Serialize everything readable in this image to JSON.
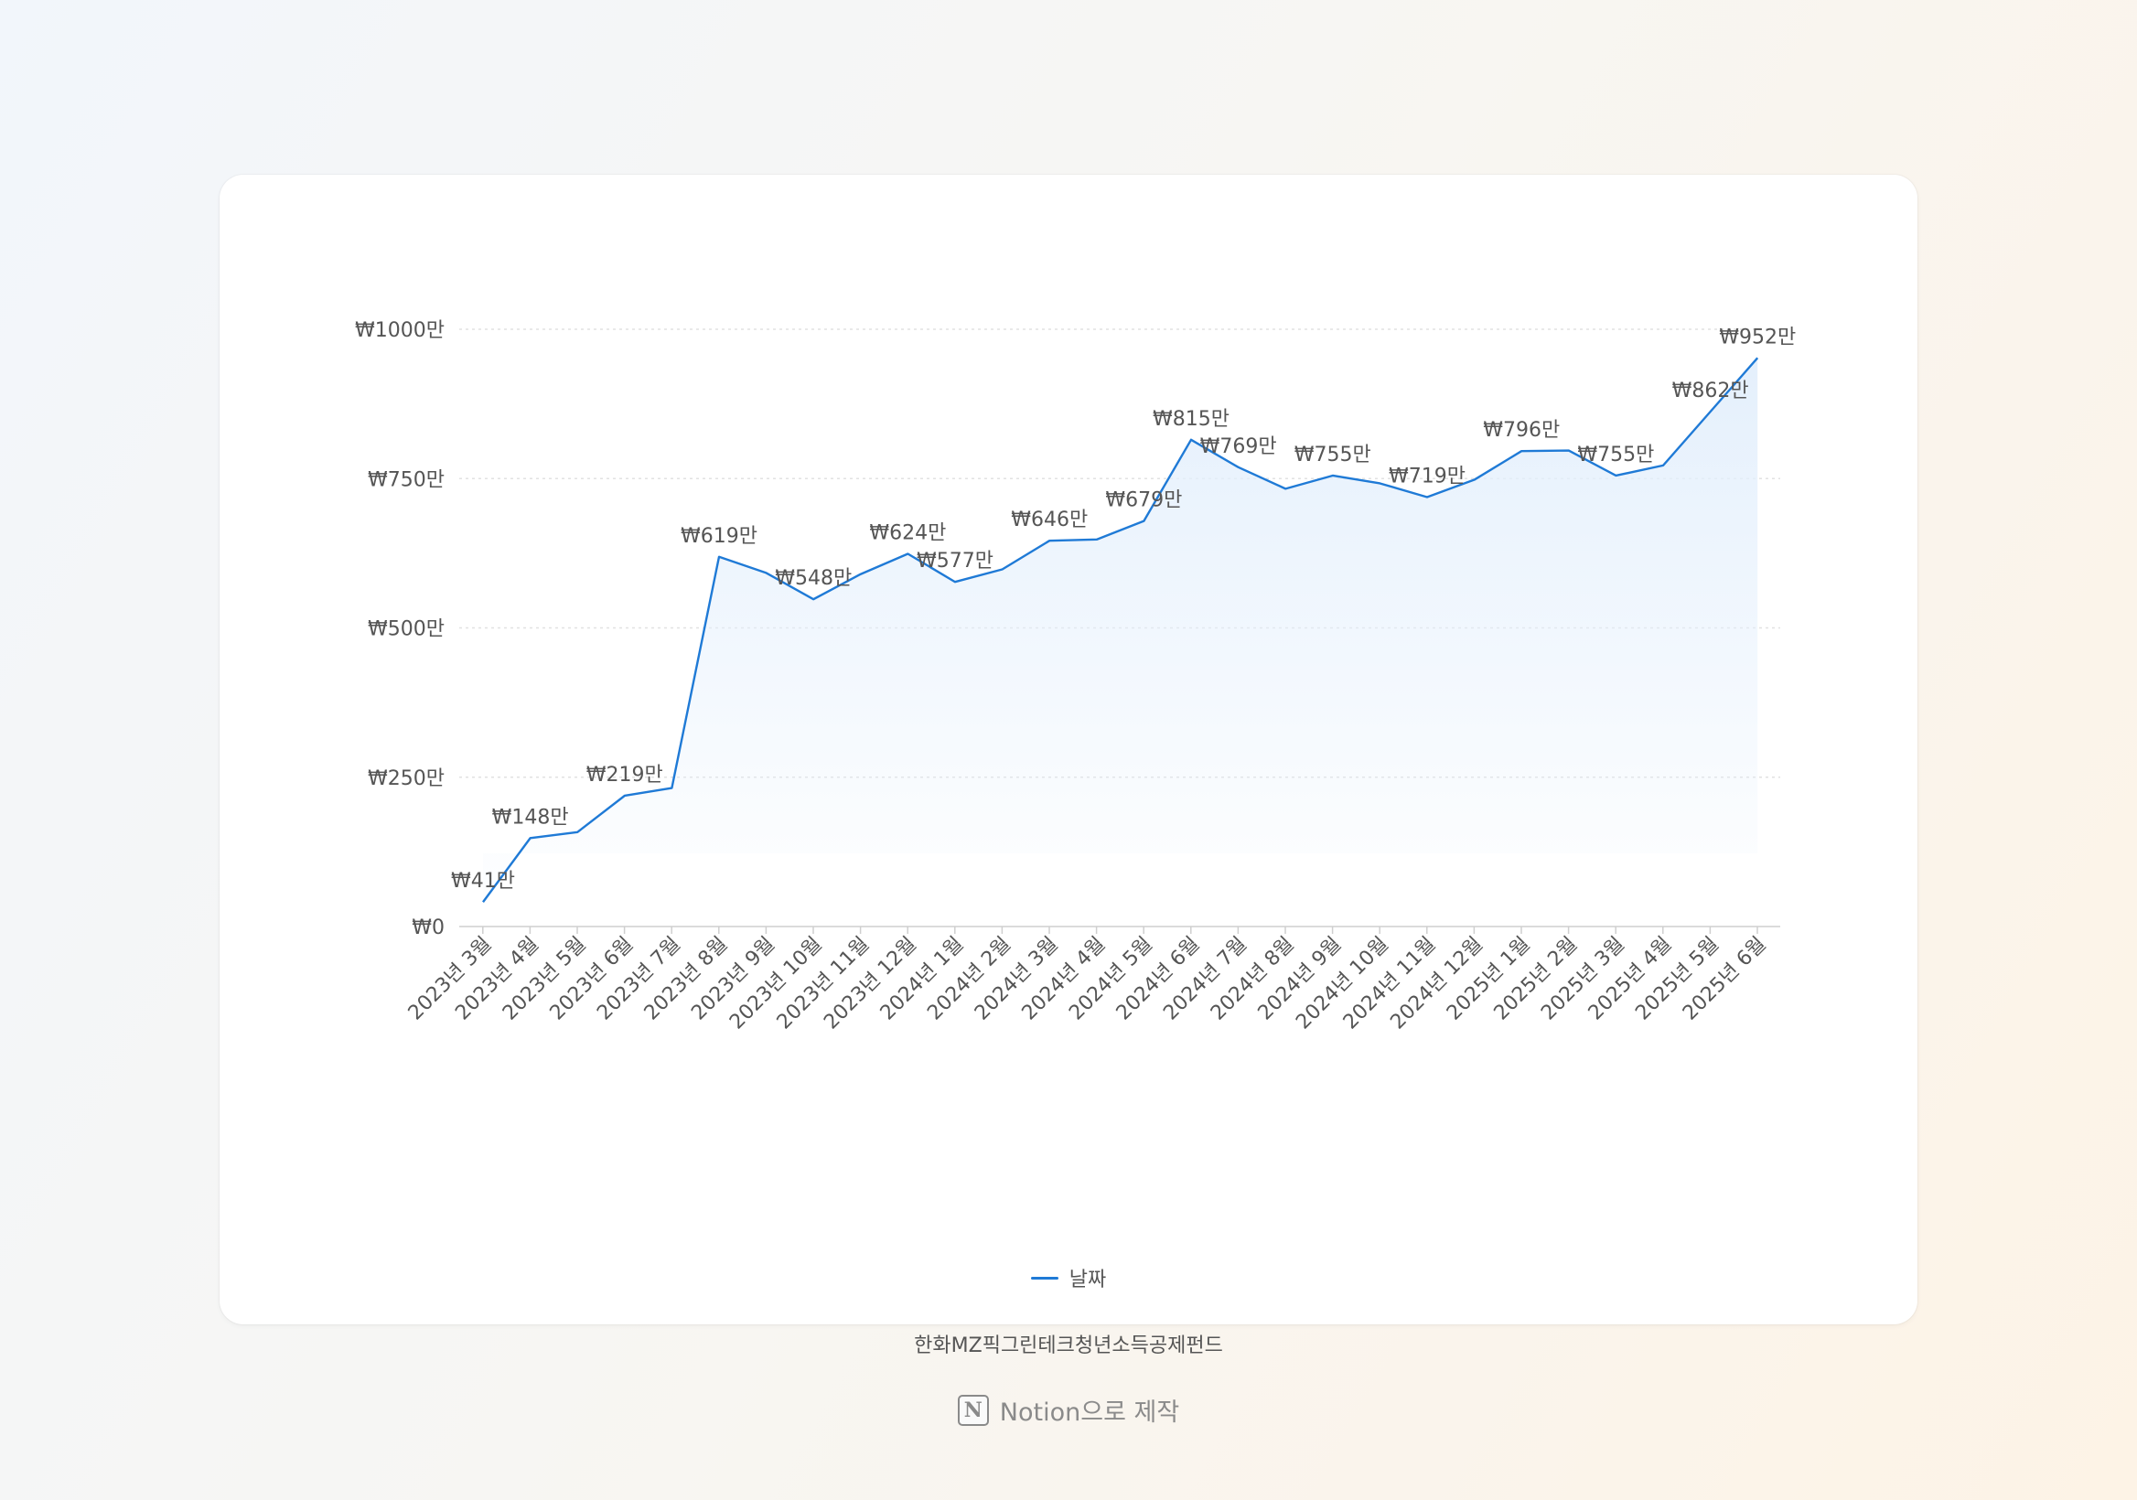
{
  "chart_data": {
    "type": "area",
    "categories": [
      "2023년 3월",
      "2023년 4월",
      "2023년 5월",
      "2023년 6월",
      "2023년 7월",
      "2023년 8월",
      "2023년 9월",
      "2023년 10월",
      "2023년 11월",
      "2023년 12월",
      "2024년 1월",
      "2024년 2월",
      "2024년 3월",
      "2024년 4월",
      "2024년 5월",
      "2024년 6월",
      "2024년 7월",
      "2024년 8월",
      "2024년 9월",
      "2024년 10월",
      "2024년 11월",
      "2024년 12월",
      "2025년 1월",
      "2025년 2월",
      "2025년 3월",
      "2025년 4월",
      "2025년 5월",
      "2025년 6월"
    ],
    "series": [
      {
        "name": "날짜",
        "values": [
          41,
          148,
          158,
          219,
          232,
          619,
          592,
          548,
          590,
          624,
          577,
          598,
          646,
          648,
          679,
          815,
          769,
          733,
          755,
          742,
          719,
          748,
          796,
          797,
          755,
          772,
          862,
          952
        ]
      }
    ],
    "data_labels": {
      "indices": [
        0,
        1,
        3,
        5,
        7,
        9,
        10,
        12,
        14,
        15,
        16,
        18,
        20,
        22,
        24,
        26,
        27
      ],
      "texts": [
        "₩41만",
        "₩148만",
        "₩219만",
        "₩619만",
        "₩548만",
        "₩624만",
        "₩577만",
        "₩646만",
        "₩679만",
        "₩815만",
        "₩769만",
        "₩755만",
        "₩719만",
        "₩796만",
        "₩755만",
        "₩862만",
        "₩952만"
      ]
    },
    "yticks": [
      0,
      250,
      500,
      750,
      1000
    ],
    "ytick_labels": [
      "₩0",
      "₩250만",
      "₩500만",
      "₩750만",
      "₩1000만"
    ],
    "ylim": [
      0,
      1000
    ],
    "grid": true,
    "legend_position": "bottom",
    "title": "한화MZ픽그린테크청년소득공제펀드",
    "xlabel": "",
    "ylabel": ""
  },
  "colors": {
    "line": "#1f7ad6",
    "fill_top": "#e3effc",
    "grid": "#e2e2e2"
  },
  "footer": {
    "icon": "notion-logo-icon",
    "text": "Notion으로 제작"
  }
}
